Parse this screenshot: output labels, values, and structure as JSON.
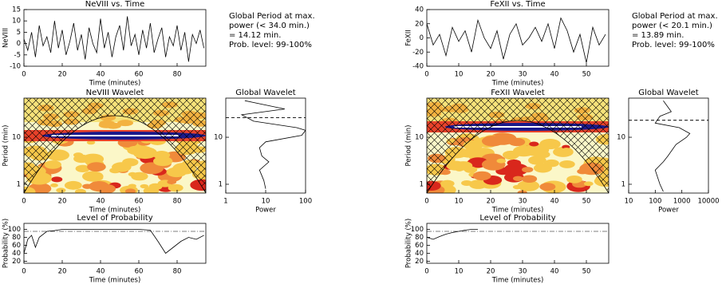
{
  "chart_data": [
    {
      "type": "line",
      "title": "NeVIII vs. Time",
      "xlabel": "Time (minutes)",
      "ylabel": "NeVIII",
      "x": [
        0,
        2,
        4,
        6,
        8,
        10,
        12,
        14,
        16,
        18,
        20,
        22,
        24,
        26,
        28,
        30,
        32,
        34,
        36,
        38,
        40,
        42,
        44,
        46,
        48,
        50,
        52,
        54,
        56,
        58,
        60,
        62,
        64,
        66,
        68,
        70,
        72,
        74,
        76,
        78,
        80,
        82,
        84,
        86,
        88,
        90,
        92,
        94
      ],
      "values": [
        2,
        -3,
        5,
        -6,
        8,
        -1,
        3,
        -4,
        10,
        -2,
        6,
        -5,
        1,
        9,
        -3,
        4,
        -7,
        7,
        0,
        -4,
        11,
        -2,
        5,
        -6,
        3,
        8,
        -3,
        12,
        -1,
        4,
        -5,
        6,
        -2,
        9,
        -4,
        2,
        7,
        -6,
        3,
        -1,
        8,
        -3,
        5,
        -8,
        4,
        0,
        6,
        -2
      ],
      "xlim": [
        0,
        95
      ],
      "xticks": [
        0,
        20,
        40,
        60,
        80
      ],
      "ylim": [
        -10,
        15
      ],
      "yticks": [
        -10,
        -5,
        0,
        5,
        10,
        15
      ],
      "annotation": [
        "Global Period at max.",
        "power (< 34.0 min.)",
        "= 14.12 min.",
        "Prob. level: 99-100%"
      ]
    },
    {
      "type": "wavelet",
      "title": "NeVIII Wavelet",
      "xlabel": "Time (minutes)",
      "ylabel": "Period (min)",
      "xlim": [
        0,
        95
      ],
      "xticks": [
        0,
        20,
        40,
        60,
        80
      ],
      "ylim": [
        0.65,
        68
      ],
      "yticks": [
        1,
        10
      ],
      "ylog": true
    },
    {
      "type": "line",
      "title": "Global Wavelet",
      "xlabel": "Power",
      "x": [
        3,
        30,
        2.5,
        5,
        60,
        100,
        80,
        10,
        7,
        8,
        12,
        7,
        9,
        10
      ],
      "values": [
        60,
        40,
        30,
        22,
        16,
        14,
        11,
        8,
        6,
        4,
        3,
        2,
        1.2,
        0.8
      ],
      "xlim": [
        1,
        100
      ],
      "xticks": [
        1,
        10,
        100
      ],
      "xlog": true,
      "ylim": [
        0.65,
        68
      ],
      "yticks": [
        1,
        10
      ],
      "ylog": true,
      "significance_period": 26
    },
    {
      "type": "line",
      "title": "Level of Probability",
      "xlabel": "Time (minutes)",
      "ylabel": "Probability (%)",
      "x": [
        0,
        2,
        4,
        6,
        8,
        12,
        16,
        20,
        40,
        60,
        66,
        70,
        74,
        78,
        82,
        86,
        90,
        94
      ],
      "values": [
        40,
        75,
        85,
        55,
        80,
        95,
        97,
        100,
        100,
        100,
        98,
        70,
        40,
        55,
        70,
        80,
        75,
        85
      ],
      "xlim": [
        0,
        95
      ],
      "xticks": [
        0,
        20,
        40,
        60,
        80
      ],
      "ylim": [
        15,
        115
      ],
      "yticks": [
        20,
        40,
        60,
        80,
        100
      ],
      "reference_level": 95
    },
    {
      "type": "line",
      "title": "FeXII vs. Time",
      "xlabel": "Time (minutes)",
      "ylabel": "FeXII",
      "x": [
        0,
        2,
        4,
        6,
        8,
        10,
        12,
        14,
        16,
        18,
        20,
        22,
        24,
        26,
        28,
        30,
        32,
        34,
        36,
        38,
        40,
        42,
        44,
        46,
        48,
        50,
        52,
        54,
        56
      ],
      "values": [
        20,
        -10,
        5,
        -25,
        15,
        -5,
        10,
        -20,
        25,
        0,
        -15,
        10,
        -30,
        5,
        20,
        -10,
        0,
        15,
        -5,
        20,
        -15,
        28,
        10,
        -20,
        5,
        -35,
        15,
        -10,
        5
      ],
      "xlim": [
        0,
        57
      ],
      "xticks": [
        0,
        10,
        20,
        30,
        40,
        50
      ],
      "ylim": [
        -40,
        40
      ],
      "yticks": [
        -40,
        -20,
        0,
        20,
        40
      ],
      "annotation": [
        "Global Period at max.",
        "power (< 20.1 min.)",
        "= 13.89 min.",
        "Prob. level: 99-100%"
      ]
    },
    {
      "type": "wavelet",
      "title": "FeXII Wavelet",
      "xlabel": "Time (minutes)",
      "ylabel": "Period (min)",
      "xlim": [
        0,
        57
      ],
      "xticks": [
        0,
        10,
        20,
        30,
        40,
        50
      ],
      "ylim": [
        0.65,
        68
      ],
      "yticks": [
        1,
        10
      ],
      "ylog": true
    },
    {
      "type": "line",
      "title": "Global Wavelet",
      "xlabel": "Power",
      "x": [
        200,
        400,
        150,
        100,
        800,
        2000,
        1500,
        600,
        300,
        200,
        100,
        150,
        200
      ],
      "values": [
        60,
        35,
        28,
        20,
        16,
        12,
        10,
        7,
        4,
        3,
        2,
        1,
        0.7
      ],
      "xlim": [
        10,
        10000
      ],
      "xticks": [
        10,
        100,
        1000,
        10000
      ],
      "xlog": true,
      "ylim": [
        0.65,
        68
      ],
      "yticks": [
        1,
        10
      ],
      "ylog": true,
      "significance_period": 23
    },
    {
      "type": "line",
      "title": "Level of Probability",
      "xlabel": "Time (minutes)",
      "ylabel": "Probability (%)",
      "x": [
        0,
        2,
        4,
        6,
        8,
        10,
        12,
        14,
        16
      ],
      "values": [
        80,
        75,
        82,
        88,
        92,
        95,
        98,
        100,
        100
      ],
      "xlim": [
        0,
        57
      ],
      "xticks": [
        0,
        10,
        20,
        30,
        40,
        50
      ],
      "ylim": [
        15,
        115
      ],
      "yticks": [
        20,
        40,
        60,
        80,
        100
      ],
      "reference_level": 95
    }
  ]
}
